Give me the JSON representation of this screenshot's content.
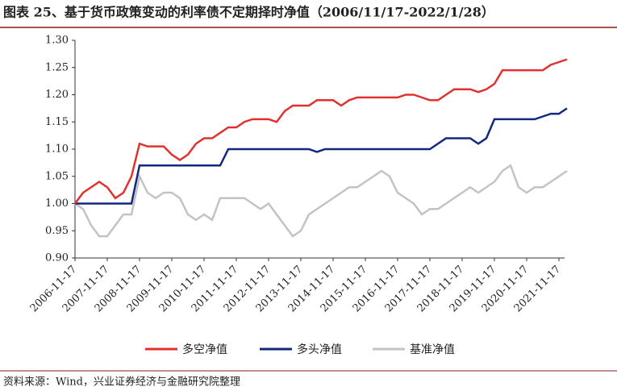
{
  "chart_data": {
    "type": "line",
    "title": "图表 25、基于货币政策变动的利率债不定期择时净值（2006/11/17-2022/1/28）",
    "source": "资料来源：Wind，兴业证券经济与金融研究院整理",
    "categories": [
      "2006-11-17",
      null,
      null,
      null,
      "2007-11-17",
      null,
      null,
      null,
      "2008-11-17",
      null,
      null,
      null,
      "2009-11-17",
      null,
      null,
      null,
      "2010-11-17",
      null,
      null,
      null,
      "2011-11-17",
      null,
      null,
      null,
      "2012-11-17",
      null,
      null,
      null,
      "2013-11-17",
      null,
      null,
      null,
      "2014-11-17",
      null,
      null,
      null,
      "2015-11-17",
      null,
      null,
      null,
      "2016-11-17",
      null,
      null,
      null,
      "2017-11-17",
      null,
      null,
      null,
      "2018-11-17",
      null,
      null,
      null,
      "2019-11-17",
      null,
      null,
      null,
      "2020-11-17",
      null,
      null,
      null,
      "2021-11-17",
      null
    ],
    "series": [
      {
        "name": "多空净值",
        "color": "#e0312f",
        "values": [
          1.0,
          1.02,
          1.03,
          1.04,
          1.03,
          1.01,
          1.02,
          1.05,
          1.11,
          1.105,
          1.105,
          1.105,
          1.09,
          1.08,
          1.09,
          1.11,
          1.12,
          1.12,
          1.13,
          1.14,
          1.14,
          1.15,
          1.155,
          1.155,
          1.155,
          1.15,
          1.17,
          1.18,
          1.18,
          1.18,
          1.19,
          1.19,
          1.19,
          1.18,
          1.19,
          1.195,
          1.195,
          1.195,
          1.195,
          1.195,
          1.195,
          1.2,
          1.2,
          1.195,
          1.19,
          1.19,
          1.2,
          1.21,
          1.21,
          1.21,
          1.205,
          1.21,
          1.22,
          1.245,
          1.245,
          1.245,
          1.245,
          1.245,
          1.245,
          1.255,
          1.26,
          1.265
        ]
      },
      {
        "name": "多头净值",
        "color": "#12287f",
        "values": [
          1.0,
          1.0,
          1.0,
          1.0,
          1.0,
          1.0,
          1.0,
          1.0,
          1.07,
          1.07,
          1.07,
          1.07,
          1.07,
          1.07,
          1.07,
          1.07,
          1.07,
          1.07,
          1.07,
          1.1,
          1.1,
          1.1,
          1.1,
          1.1,
          1.1,
          1.1,
          1.1,
          1.1,
          1.1,
          1.1,
          1.095,
          1.1,
          1.1,
          1.1,
          1.1,
          1.1,
          1.1,
          1.1,
          1.1,
          1.1,
          1.1,
          1.1,
          1.1,
          1.1,
          1.1,
          1.11,
          1.12,
          1.12,
          1.12,
          1.12,
          1.11,
          1.12,
          1.155,
          1.155,
          1.155,
          1.155,
          1.155,
          1.155,
          1.16,
          1.165,
          1.165,
          1.175
        ]
      },
      {
        "name": "基准净值",
        "color": "#c3c3c3",
        "values": [
          1.0,
          0.99,
          0.96,
          0.94,
          0.94,
          0.96,
          0.98,
          0.98,
          1.05,
          1.02,
          1.01,
          1.02,
          1.02,
          1.01,
          0.98,
          0.97,
          0.98,
          0.97,
          1.01,
          1.01,
          1.01,
          1.01,
          1.0,
          0.99,
          1.0,
          0.98,
          0.96,
          0.94,
          0.95,
          0.98,
          0.99,
          1.0,
          1.01,
          1.02,
          1.03,
          1.03,
          1.04,
          1.05,
          1.06,
          1.05,
          1.02,
          1.01,
          1.0,
          0.98,
          0.99,
          0.99,
          1.0,
          1.01,
          1.02,
          1.03,
          1.02,
          1.03,
          1.04,
          1.06,
          1.07,
          1.03,
          1.02,
          1.03,
          1.03,
          1.04,
          1.05,
          1.06
        ]
      }
    ],
    "ylim": [
      0.9,
      1.3
    ],
    "yticks": [
      {
        "value": 0.9,
        "label": "0.90"
      },
      {
        "value": 0.95,
        "label": "0.95"
      },
      {
        "value": 1.0,
        "label": "1.00"
      },
      {
        "value": 1.05,
        "label": "1.05"
      },
      {
        "value": 1.1,
        "label": "1.10"
      },
      {
        "value": 1.15,
        "label": "1.15"
      },
      {
        "value": 1.2,
        "label": "1.20"
      },
      {
        "value": 1.25,
        "label": "1.25"
      },
      {
        "value": 1.3,
        "label": "1.30"
      }
    ],
    "legend": "bottom"
  }
}
